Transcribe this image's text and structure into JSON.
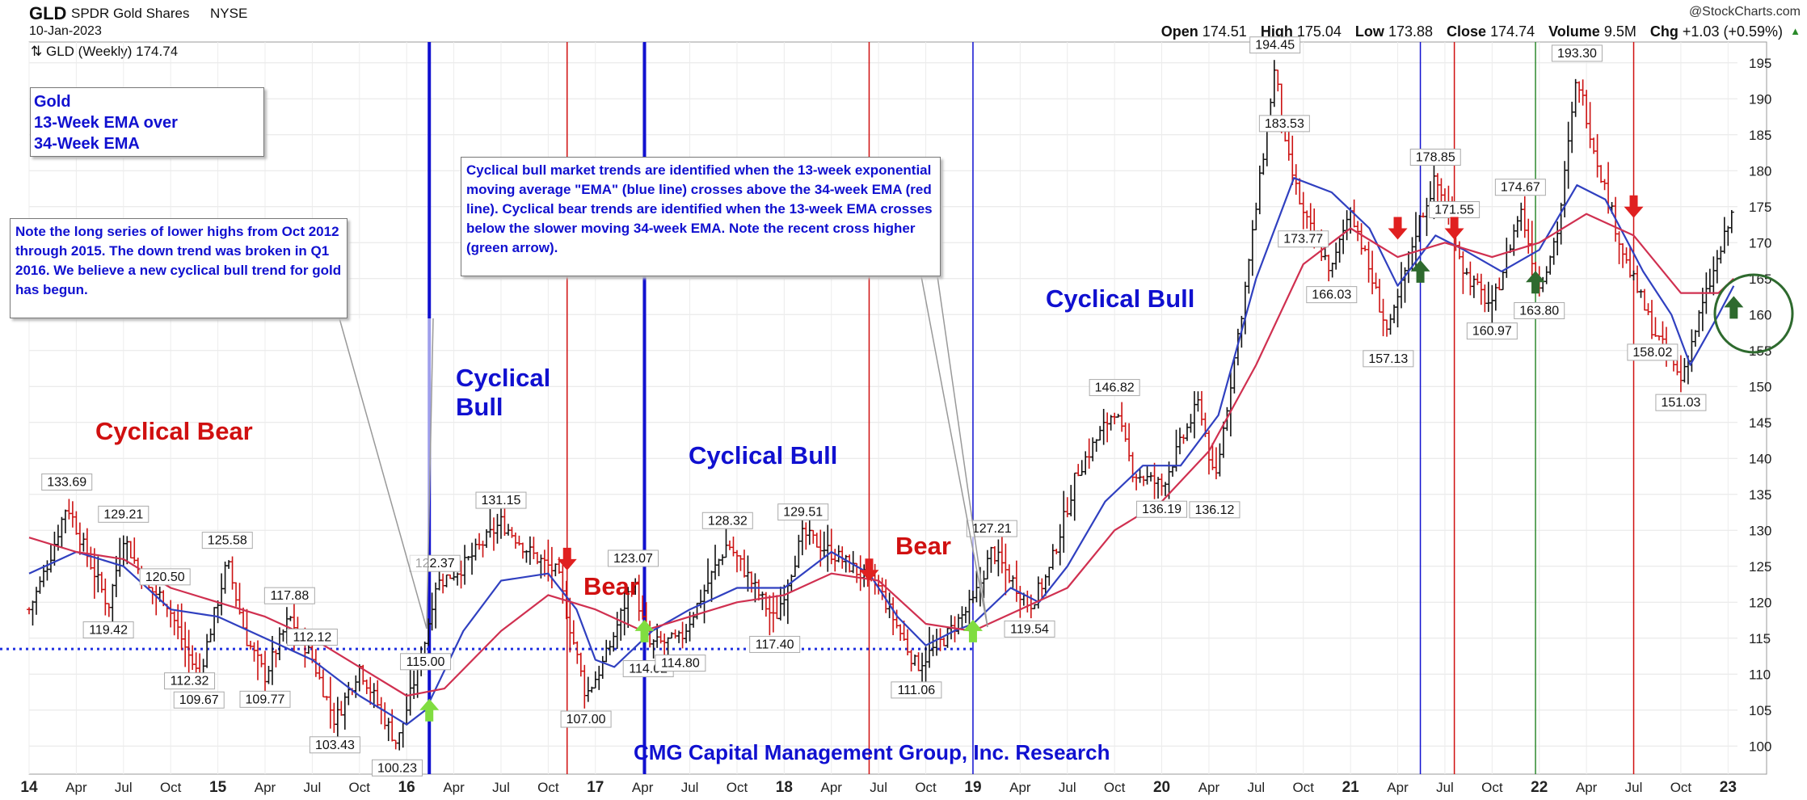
{
  "header": {
    "ticker": "GLD",
    "full_name": "SPDR Gold Shares",
    "exchange": "NYSE",
    "date": "10-Jan-2023",
    "copyright": "@StockCharts.com",
    "legend": "GLD (Weekly) 174.74",
    "open_label": "Open",
    "open": "174.51",
    "high_label": "High",
    "high": "175.04",
    "low_label": "Low",
    "low": "173.88",
    "close_label": "Close",
    "close": "174.74",
    "volume_label": "Volume",
    "volume": "9.5M",
    "chg_label": "Chg",
    "chg": "+1.03 (+0.59%)"
  },
  "annotations": {
    "gold_box": [
      "Gold",
      "13-Week EMA over",
      "34-Week EMA"
    ],
    "note_box": "Note the long series of lower highs from Oct 2012 through 2015.  The down trend was broken in Q1 2016.  We believe a new cyclical bull trend for gold has begun.",
    "bull_box": "Cyclical bull market trends are identified when the 13-week exponential moving average \"EMA\" (blue line) crosses above the 34-week EMA (red line). Cyclical bear trends are identified when the 13-week EMA crosses below the slower moving 34-week EMA.  Note the recent cross higher (green arrow).",
    "footer": "CMG Capital Management Group, Inc. Research"
  },
  "phases": [
    {
      "text": "Cyclical Bear",
      "color": "#d01010"
    },
    {
      "text": "Cyclical\nBull",
      "color": "#1010d0"
    },
    {
      "text": "Bear",
      "color": "#d01010"
    },
    {
      "text": "Cyclical Bull",
      "color": "#1010d0"
    },
    {
      "text": "Bear",
      "color": "#d01010"
    },
    {
      "text": "Cyclical Bull",
      "color": "#1010d0"
    }
  ],
  "colors": {
    "ema13": "#3040c0",
    "ema34": "#d03050",
    "bull": "#1010d0",
    "bear": "#d01010",
    "up_arrow": "#80dd40",
    "green_arrow": "#2e6a2e",
    "down_arrow": "#e02020",
    "green_line": "#2e8a2e"
  },
  "chart_data": {
    "type": "line",
    "title": "",
    "xlabel": "",
    "ylabel": "",
    "ylim": [
      97,
      197
    ],
    "xlim": [
      2014.0,
      2023.05
    ],
    "y_ticks": [
      100,
      105,
      110,
      115,
      120,
      125,
      130,
      135,
      140,
      145,
      150,
      155,
      160,
      165,
      170,
      175,
      180,
      185,
      190,
      195
    ],
    "x_ticks": [
      {
        "t": 2014.0,
        "label": "14",
        "bold": true
      },
      {
        "t": 2014.25,
        "label": "Apr"
      },
      {
        "t": 2014.5,
        "label": "Jul"
      },
      {
        "t": 2014.75,
        "label": "Oct"
      },
      {
        "t": 2015.0,
        "label": "15",
        "bold": true
      },
      {
        "t": 2015.25,
        "label": "Apr"
      },
      {
        "t": 2015.5,
        "label": "Jul"
      },
      {
        "t": 2015.75,
        "label": "Oct"
      },
      {
        "t": 2016.0,
        "label": "16",
        "bold": true
      },
      {
        "t": 2016.25,
        "label": "Apr"
      },
      {
        "t": 2016.5,
        "label": "Jul"
      },
      {
        "t": 2016.75,
        "label": "Oct"
      },
      {
        "t": 2017.0,
        "label": "17",
        "bold": true
      },
      {
        "t": 2017.25,
        "label": "Apr"
      },
      {
        "t": 2017.5,
        "label": "Jul"
      },
      {
        "t": 2017.75,
        "label": "Oct"
      },
      {
        "t": 2018.0,
        "label": "18",
        "bold": true
      },
      {
        "t": 2018.25,
        "label": "Apr"
      },
      {
        "t": 2018.5,
        "label": "Jul"
      },
      {
        "t": 2018.75,
        "label": "Oct"
      },
      {
        "t": 2019.0,
        "label": "19",
        "bold": true
      },
      {
        "t": 2019.25,
        "label": "Apr"
      },
      {
        "t": 2019.5,
        "label": "Jul"
      },
      {
        "t": 2019.75,
        "label": "Oct"
      },
      {
        "t": 2020.0,
        "label": "20",
        "bold": true
      },
      {
        "t": 2020.25,
        "label": "Apr"
      },
      {
        "t": 2020.5,
        "label": "Jul"
      },
      {
        "t": 2020.75,
        "label": "Oct"
      },
      {
        "t": 2021.0,
        "label": "21",
        "bold": true
      },
      {
        "t": 2021.25,
        "label": "Apr"
      },
      {
        "t": 2021.5,
        "label": "Jul"
      },
      {
        "t": 2021.75,
        "label": "Oct"
      },
      {
        "t": 2022.0,
        "label": "22",
        "bold": true
      },
      {
        "t": 2022.25,
        "label": "Apr"
      },
      {
        "t": 2022.5,
        "label": "Jul"
      },
      {
        "t": 2022.75,
        "label": "Oct"
      },
      {
        "t": 2023.0,
        "label": "23",
        "bold": true
      }
    ],
    "price_path": [
      [
        2014.0,
        119
      ],
      [
        2014.05,
        122
      ],
      [
        2014.12,
        127
      ],
      [
        2014.2,
        133.69
      ],
      [
        2014.3,
        127
      ],
      [
        2014.42,
        119.42
      ],
      [
        2014.5,
        129.21
      ],
      [
        2014.62,
        122
      ],
      [
        2014.72,
        120.5
      ],
      [
        2014.85,
        112.32
      ],
      [
        2014.9,
        109.67
      ],
      [
        2015.05,
        125.58
      ],
      [
        2015.15,
        115
      ],
      [
        2015.25,
        109.77
      ],
      [
        2015.38,
        117.88
      ],
      [
        2015.5,
        112.12
      ],
      [
        2015.62,
        103.43
      ],
      [
        2015.75,
        111
      ],
      [
        2015.95,
        100.23
      ],
      [
        2016.1,
        115
      ],
      [
        2016.15,
        122.37
      ],
      [
        2016.3,
        125
      ],
      [
        2016.5,
        131.15
      ],
      [
        2016.65,
        127
      ],
      [
        2016.8,
        124
      ],
      [
        2016.95,
        107.0
      ],
      [
        2017.05,
        112
      ],
      [
        2017.2,
        123.07
      ],
      [
        2017.28,
        114.02
      ],
      [
        2017.45,
        114.8
      ],
      [
        2017.7,
        128.32
      ],
      [
        2017.95,
        117.4
      ],
      [
        2018.1,
        129.51
      ],
      [
        2018.3,
        126
      ],
      [
        2018.5,
        122
      ],
      [
        2018.7,
        111.06
      ],
      [
        2018.85,
        115
      ],
      [
        2019.0,
        120
      ],
      [
        2019.1,
        127.21
      ],
      [
        2019.3,
        119.54
      ],
      [
        2019.4,
        124
      ],
      [
        2019.55,
        138
      ],
      [
        2019.75,
        146.82
      ],
      [
        2019.85,
        138
      ],
      [
        2020.0,
        136.19
      ],
      [
        2020.2,
        148
      ],
      [
        2020.28,
        136.12
      ],
      [
        2020.45,
        165
      ],
      [
        2020.6,
        194.45
      ],
      [
        2020.65,
        183.53
      ],
      [
        2020.75,
        173.77
      ],
      [
        2020.9,
        166.03
      ],
      [
        2021.0,
        175
      ],
      [
        2021.2,
        157.13
      ],
      [
        2021.35,
        172
      ],
      [
        2021.45,
        178.85
      ],
      [
        2021.55,
        171.55
      ],
      [
        2021.6,
        166
      ],
      [
        2021.75,
        160.97
      ],
      [
        2021.9,
        174.67
      ],
      [
        2022.0,
        163.8
      ],
      [
        2022.1,
        172
      ],
      [
        2022.2,
        193.3
      ],
      [
        2022.3,
        182
      ],
      [
        2022.45,
        168
      ],
      [
        2022.6,
        158.02
      ],
      [
        2022.75,
        151.03
      ],
      [
        2022.85,
        160
      ],
      [
        2022.95,
        168
      ],
      [
        2023.03,
        174.74
      ]
    ],
    "series": [
      {
        "key": "ema13",
        "points": [
          [
            2014.0,
            124
          ],
          [
            2014.25,
            127
          ],
          [
            2014.5,
            125
          ],
          [
            2014.75,
            119
          ],
          [
            2015.0,
            118
          ],
          [
            2015.25,
            115
          ],
          [
            2015.5,
            112
          ],
          [
            2015.75,
            107
          ],
          [
            2016.0,
            103
          ],
          [
            2016.1,
            105
          ],
          [
            2016.3,
            116
          ],
          [
            2016.5,
            123
          ],
          [
            2016.75,
            124
          ],
          [
            2016.9,
            119
          ],
          [
            2017.0,
            112
          ],
          [
            2017.1,
            111
          ],
          [
            2017.3,
            116
          ],
          [
            2017.5,
            119
          ],
          [
            2017.75,
            122
          ],
          [
            2018.0,
            122
          ],
          [
            2018.25,
            127
          ],
          [
            2018.45,
            124
          ],
          [
            2018.6,
            118
          ],
          [
            2018.75,
            114
          ],
          [
            2018.9,
            116
          ],
          [
            2019.0,
            117
          ],
          [
            2019.2,
            122
          ],
          [
            2019.35,
            120
          ],
          [
            2019.5,
            125
          ],
          [
            2019.7,
            134
          ],
          [
            2019.9,
            139
          ],
          [
            2020.1,
            139
          ],
          [
            2020.3,
            146
          ],
          [
            2020.5,
            165
          ],
          [
            2020.7,
            179
          ],
          [
            2020.9,
            177
          ],
          [
            2021.1,
            172
          ],
          [
            2021.25,
            164
          ],
          [
            2021.45,
            171
          ],
          [
            2021.6,
            169
          ],
          [
            2021.8,
            166
          ],
          [
            2022.0,
            169
          ],
          [
            2022.2,
            178
          ],
          [
            2022.35,
            176
          ],
          [
            2022.55,
            166
          ],
          [
            2022.7,
            160
          ],
          [
            2022.8,
            153
          ],
          [
            2022.95,
            160
          ],
          [
            2023.03,
            164
          ]
        ]
      },
      {
        "key": "ema34",
        "points": [
          [
            2014.0,
            129
          ],
          [
            2014.25,
            127
          ],
          [
            2014.5,
            126
          ],
          [
            2014.75,
            122
          ],
          [
            2015.0,
            120
          ],
          [
            2015.25,
            118
          ],
          [
            2015.5,
            115
          ],
          [
            2015.75,
            111
          ],
          [
            2016.0,
            107
          ],
          [
            2016.2,
            108
          ],
          [
            2016.5,
            116
          ],
          [
            2016.75,
            121
          ],
          [
            2017.0,
            119
          ],
          [
            2017.25,
            116
          ],
          [
            2017.5,
            118
          ],
          [
            2017.75,
            120
          ],
          [
            2018.0,
            121
          ],
          [
            2018.25,
            124
          ],
          [
            2018.5,
            123
          ],
          [
            2018.75,
            117
          ],
          [
            2019.0,
            116
          ],
          [
            2019.25,
            119
          ],
          [
            2019.5,
            122
          ],
          [
            2019.75,
            130
          ],
          [
            2020.0,
            134
          ],
          [
            2020.25,
            141
          ],
          [
            2020.5,
            153
          ],
          [
            2020.75,
            167
          ],
          [
            2021.0,
            172
          ],
          [
            2021.25,
            168
          ],
          [
            2021.5,
            170
          ],
          [
            2021.75,
            168
          ],
          [
            2022.0,
            170
          ],
          [
            2022.25,
            174
          ],
          [
            2022.5,
            171
          ],
          [
            2022.75,
            163
          ],
          [
            2022.95,
            163
          ],
          [
            2023.03,
            165
          ]
        ]
      }
    ],
    "peak_labels": [
      {
        "t": 2014.2,
        "v": "133.69",
        "pos": "above"
      },
      {
        "t": 2014.42,
        "v": "119.42",
        "pos": "below"
      },
      {
        "t": 2014.5,
        "v": "129.21",
        "pos": "above"
      },
      {
        "t": 2014.72,
        "v": "120.50",
        "pos": "above"
      },
      {
        "t": 2014.85,
        "v": "112.32",
        "pos": "below"
      },
      {
        "t": 2014.9,
        "v": "109.67",
        "pos": "below"
      },
      {
        "t": 2015.05,
        "v": "125.58",
        "pos": "above"
      },
      {
        "t": 2015.25,
        "v": "109.77",
        "pos": "below"
      },
      {
        "t": 2015.38,
        "v": "117.88",
        "pos": "above"
      },
      {
        "t": 2015.5,
        "v": "112.12",
        "pos": "above"
      },
      {
        "t": 2015.62,
        "v": "103.43",
        "pos": "below"
      },
      {
        "t": 2015.95,
        "v": "100.23",
        "pos": "below"
      },
      {
        "t": 2016.1,
        "v": "115.00",
        "pos": "below"
      },
      {
        "t": 2016.15,
        "v": "122.37",
        "pos": "above"
      },
      {
        "t": 2016.5,
        "v": "131.15",
        "pos": "above"
      },
      {
        "t": 2016.95,
        "v": "107.00",
        "pos": "below"
      },
      {
        "t": 2017.2,
        "v": "123.07",
        "pos": "above"
      },
      {
        "t": 2017.28,
        "v": "114.02",
        "pos": "below"
      },
      {
        "t": 2017.45,
        "v": "114.80",
        "pos": "below"
      },
      {
        "t": 2017.7,
        "v": "128.32",
        "pos": "above"
      },
      {
        "t": 2017.95,
        "v": "117.40",
        "pos": "below"
      },
      {
        "t": 2018.1,
        "v": "129.51",
        "pos": "above"
      },
      {
        "t": 2018.7,
        "v": "111.06",
        "pos": "below"
      },
      {
        "t": 2019.1,
        "v": "127.21",
        "pos": "above"
      },
      {
        "t": 2019.3,
        "v": "119.54",
        "pos": "below"
      },
      {
        "t": 2019.75,
        "v": "146.82",
        "pos": "above"
      },
      {
        "t": 2020.0,
        "v": "136.19",
        "pos": "below"
      },
      {
        "t": 2020.28,
        "v": "136.12",
        "pos": "below"
      },
      {
        "t": 2020.6,
        "v": "194.45",
        "pos": "above"
      },
      {
        "t": 2020.65,
        "v": "183.53",
        "pos": "above"
      },
      {
        "t": 2020.75,
        "v": "173.77",
        "pos": "below"
      },
      {
        "t": 2020.9,
        "v": "166.03",
        "pos": "below"
      },
      {
        "t": 2021.2,
        "v": "157.13",
        "pos": "below"
      },
      {
        "t": 2021.45,
        "v": "178.85",
        "pos": "above"
      },
      {
        "t": 2021.55,
        "v": "171.55",
        "pos": "above"
      },
      {
        "t": 2021.75,
        "v": "160.97",
        "pos": "below"
      },
      {
        "t": 2021.9,
        "v": "174.67",
        "pos": "above"
      },
      {
        "t": 2022.0,
        "v": "163.80",
        "pos": "below"
      },
      {
        "t": 2022.2,
        "v": "193.30",
        "pos": "above"
      },
      {
        "t": 2022.6,
        "v": "158.02",
        "pos": "below"
      },
      {
        "t": 2022.75,
        "v": "151.03",
        "pos": "below"
      }
    ],
    "vertical_lines": [
      {
        "t": 2016.12,
        "color": "#1010d0",
        "w": 4
      },
      {
        "t": 2016.85,
        "color": "#d01010",
        "w": 1.5
      },
      {
        "t": 2017.26,
        "color": "#1010d0",
        "w": 4
      },
      {
        "t": 2018.45,
        "color": "#d01010",
        "w": 1.5
      },
      {
        "t": 2019.0,
        "color": "#1010d0",
        "w": 1.5
      },
      {
        "t": 2021.37,
        "color": "#1010d0",
        "w": 1.5
      },
      {
        "t": 2021.55,
        "color": "#d01010",
        "w": 1.5
      },
      {
        "t": 2021.98,
        "color": "#2e8a2e",
        "w": 1.5
      },
      {
        "t": 2022.5,
        "color": "#d01010",
        "w": 1.5
      }
    ],
    "dotted_level": 113.5,
    "arrows": [
      {
        "t": 2016.12,
        "v": 105,
        "dir": "up",
        "color": "#80dd40"
      },
      {
        "t": 2016.85,
        "v": 126,
        "dir": "down",
        "color": "#e02020"
      },
      {
        "t": 2017.26,
        "v": 116,
        "dir": "up",
        "color": "#80dd40"
      },
      {
        "t": 2018.45,
        "v": 124.5,
        "dir": "down",
        "color": "#e02020"
      },
      {
        "t": 2019.0,
        "v": 116,
        "dir": "up",
        "color": "#80dd40"
      },
      {
        "t": 2021.25,
        "v": 172,
        "dir": "down",
        "color": "#e02020"
      },
      {
        "t": 2021.37,
        "v": 166,
        "dir": "up",
        "color": "#2e6a2e"
      },
      {
        "t": 2021.55,
        "v": 172,
        "dir": "down",
        "color": "#e02020"
      },
      {
        "t": 2021.98,
        "v": 164.5,
        "dir": "up",
        "color": "#2e6a2e"
      },
      {
        "t": 2022.5,
        "v": 175,
        "dir": "down",
        "color": "#e02020"
      },
      {
        "t": 2023.03,
        "v": 161,
        "dir": "up",
        "color": "#2e6a2e"
      }
    ]
  }
}
